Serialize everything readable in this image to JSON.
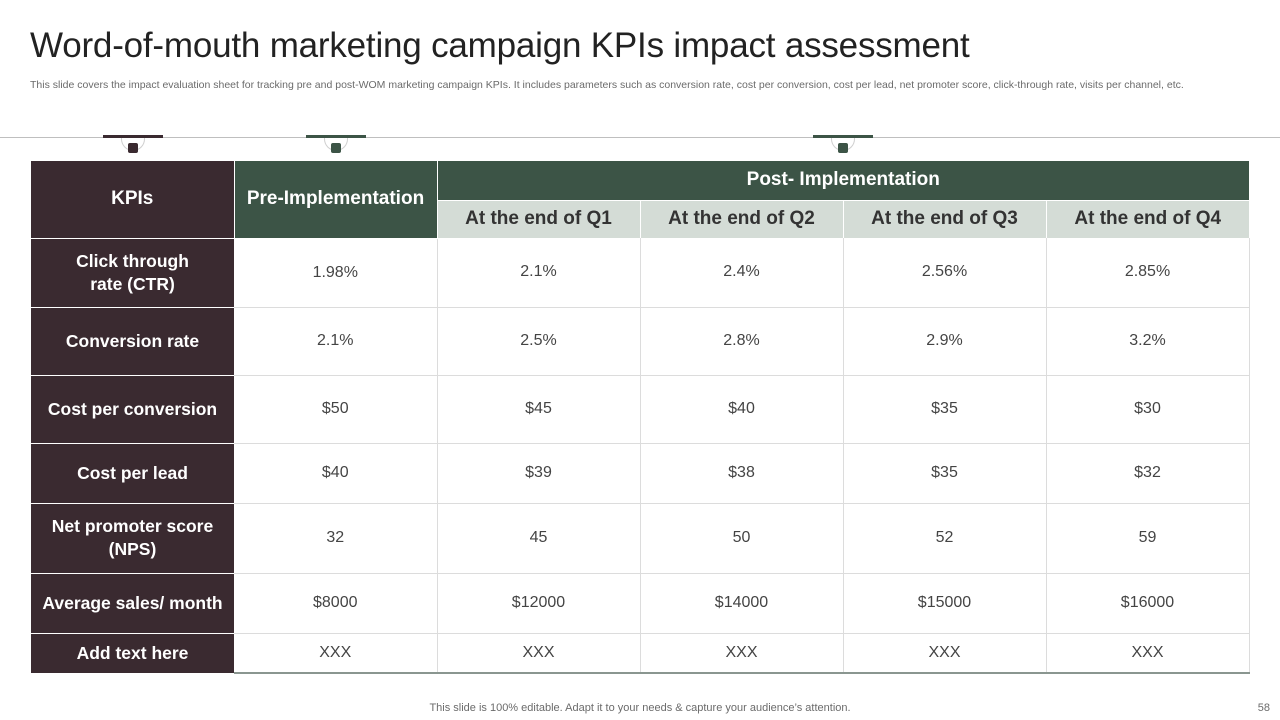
{
  "slide": {
    "title": "Word-of-mouth marketing campaign KPIs impact assessment",
    "subtitle": "This slide covers the impact evaluation sheet for tracking pre and post-WOM marketing campaign KPIs. It includes parameters such as conversion rate, cost per conversion, cost per lead, net promoter score, click-through rate, visits per channel, etc.",
    "footer": "This slide is 100% editable. Adapt it to your needs & capture your audience’s attention.",
    "page_number": "58"
  },
  "colors": {
    "maroon": "#3a2a30",
    "green": "#3c5446",
    "light_green": "#d4dcd6"
  },
  "table": {
    "header_kpi": "KPIs",
    "header_pre": "Pre-Implementation",
    "header_post": "Post- Implementation",
    "quarters": [
      "At the end of Q1",
      "At the end of Q2",
      "At the end of Q3",
      "At the end of Q4"
    ],
    "rows": [
      {
        "kpi_line1": "Click through",
        "kpi_line2": "rate (CTR)",
        "pre": "1.98%",
        "q": [
          "2.1%",
          "2.4%",
          "2.56%",
          "2.85%"
        ]
      },
      {
        "kpi_line1": "Conversion rate",
        "kpi_line2": "",
        "pre": "2.1%",
        "q": [
          "2.5%",
          "2.8%",
          "2.9%",
          "3.2%"
        ]
      },
      {
        "kpi_line1": "Cost per conversion",
        "kpi_line2": "",
        "pre": "$50",
        "q": [
          "$45",
          "$40",
          "$35",
          "$30"
        ]
      },
      {
        "kpi_line1": "Cost per lead",
        "kpi_line2": "",
        "pre": "$40",
        "q": [
          "$39",
          "$38",
          "$35",
          "$32"
        ]
      },
      {
        "kpi_line1": "Net promoter score",
        "kpi_line2": "(NPS)",
        "pre": "32",
        "q": [
          "45",
          "50",
          "52",
          "59"
        ]
      },
      {
        "kpi_line1": "Average sales/ month",
        "kpi_line2": "",
        "pre": "$8000",
        "q": [
          "$12000",
          "$14000",
          "$15000",
          "$16000"
        ]
      },
      {
        "kpi_line1": "Add text here",
        "kpi_line2": "",
        "pre": "XXX",
        "q": [
          "XXX",
          "XXX",
          "XXX",
          "XXX"
        ]
      }
    ]
  }
}
